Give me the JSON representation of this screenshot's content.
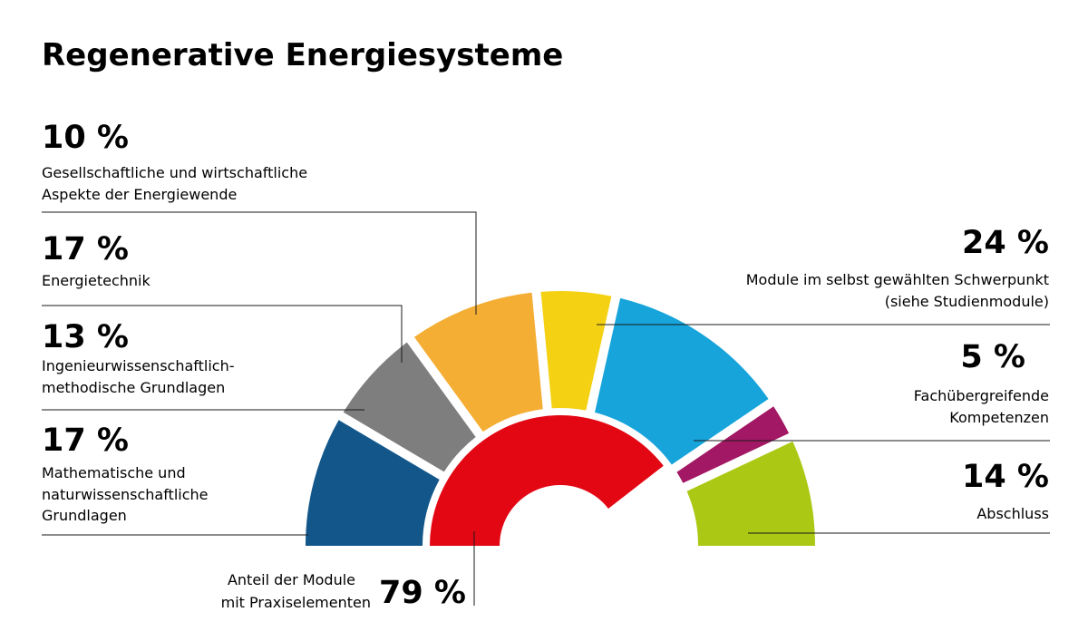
{
  "chart_data": {
    "type": "pie",
    "title": "Regenerative Energiesysteme",
    "segments": [
      {
        "value": 17,
        "value_label": "17 %",
        "label": [
          "Mathematische und",
          "naturwissenschaftliche",
          "Grundlagen"
        ],
        "color": "#13578a"
      },
      {
        "value": 13,
        "value_label": "13 %",
        "label": [
          "Ingenieurwissenschaftlich-",
          "methodische Grundlagen"
        ],
        "color": "#7d7e7d"
      },
      {
        "value": 17,
        "value_label": "17 %",
        "label": [
          "Energietechnik"
        ],
        "color": "#f4ae34"
      },
      {
        "value": 10,
        "value_label": "10 %",
        "label": [
          "Gesellschaftliche und wirtschaftliche",
          "Aspekte der Energiewende"
        ],
        "color": "#f5d114"
      },
      {
        "value": 24,
        "value_label": "24 %",
        "label": [
          "Module im selbst gewählten Schwerpunkt",
          "(siehe Studienmodule)"
        ],
        "color": "#16a4db"
      },
      {
        "value": 5,
        "value_label": "5 %",
        "label": [
          "Fachübergreifende",
          "Kompetenzen"
        ],
        "color": "#a31864"
      },
      {
        "value": 14,
        "value_label": "14 %",
        "label": [
          "Abschluss"
        ],
        "color": "#abc814"
      }
    ],
    "inner": {
      "value": 79,
      "value_label": "79 %",
      "label": [
        "Anteil der Module",
        "mit Praxiselementen"
      ],
      "color": "#e30613"
    }
  }
}
